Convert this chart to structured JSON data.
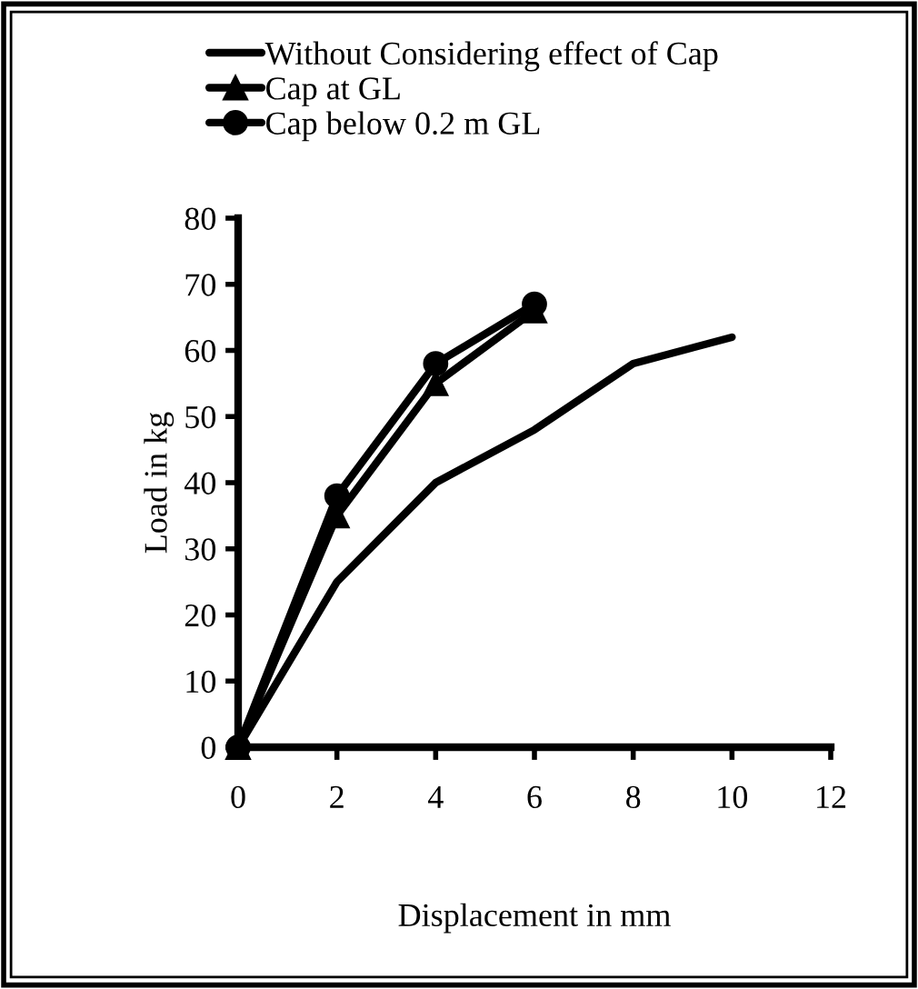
{
  "chart_data": {
    "type": "line",
    "xlabel": "Displacement in mm",
    "ylabel": "Load in kg",
    "xlim": [
      0,
      12
    ],
    "xticks": [
      0,
      2,
      4,
      6,
      8,
      10,
      12
    ],
    "ylim": [
      0,
      80
    ],
    "yticks": [
      0,
      10,
      20,
      30,
      40,
      50,
      60,
      70,
      80
    ],
    "grid": false,
    "legend": "top",
    "line_style": "solid",
    "series": [
      {
        "name": "Without Considering effect of Cap",
        "color": "#000000",
        "marker": "none",
        "x": [
          0,
          2,
          4,
          6,
          8,
          10
        ],
        "values": [
          0,
          25,
          40,
          48,
          58,
          62
        ]
      },
      {
        "name": "Cap at GL",
        "color": "#000000",
        "marker": "triangle",
        "x": [
          0,
          2,
          4,
          6
        ],
        "values": [
          0,
          35,
          55,
          66
        ]
      },
      {
        "name": "Cap below 0.2 m GL",
        "color": "#000000",
        "marker": "circle",
        "x": [
          0,
          2,
          4,
          6
        ],
        "values": [
          0,
          38,
          58,
          67
        ]
      }
    ]
  }
}
